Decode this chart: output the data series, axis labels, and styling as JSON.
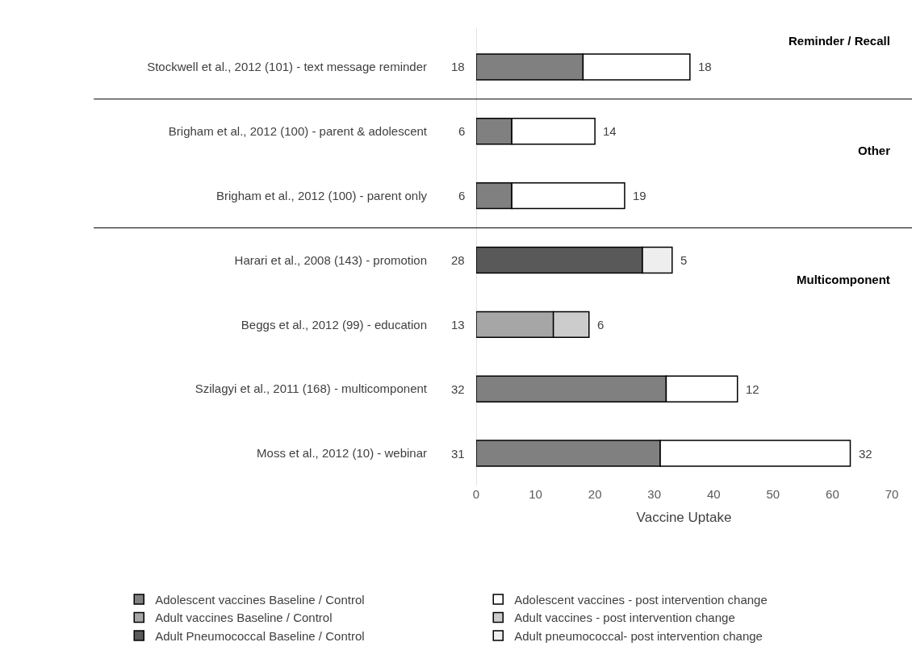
{
  "chart_data": {
    "type": "bar",
    "orientation": "horizontal",
    "stacked": true,
    "data_labels": true,
    "categories": [
      "Stockwell et al., 2012 (101) - text message reminder",
      "Brigham et al., 2012 (100) - parent & adolescent",
      "Brigham et al., 2012 (100) - parent only",
      "Harari et al., 2008 (143) - promotion",
      "Beggs et al., 2012 (99) - education",
      "Szilagyi et al., 2011 (168) - multicomponent",
      "Moss et al., 2012 (10) - webinar"
    ],
    "series": [
      {
        "name": "Adolescent vaccines Baseline / Control",
        "color": "#808080",
        "values": [
          18,
          6,
          6,
          null,
          null,
          32,
          31
        ]
      },
      {
        "name": "Adolescent vaccines - post intervention change",
        "color": "#ffffff",
        "values": [
          18,
          14,
          19,
          null,
          null,
          12,
          32
        ]
      },
      {
        "name": "Adult vaccines Baseline / Control",
        "color": "#a6a6a6",
        "values": [
          null,
          null,
          null,
          null,
          13,
          null,
          null
        ]
      },
      {
        "name": "Adult vaccines - post intervention change",
        "color": "#cccccc",
        "values": [
          null,
          null,
          null,
          null,
          6,
          null,
          null
        ]
      },
      {
        "name": "Adult Pneumococcal Baseline / Control",
        "color": "#595959",
        "values": [
          null,
          null,
          null,
          28,
          null,
          null,
          null
        ]
      },
      {
        "name": "Adult pneumococcal- post intervention change",
        "color": "#eeeeee",
        "values": [
          null,
          null,
          null,
          5,
          null,
          null,
          null
        ]
      }
    ],
    "xlabel": "Vaccine Uptake",
    "xlim": [
      0,
      70
    ],
    "xticks": [
      0,
      10,
      20,
      30,
      40,
      50,
      60,
      70
    ],
    "annotations": [
      "Reminder / Recall",
      "Other",
      "Multicomponent"
    ],
    "legend": "bottom"
  }
}
